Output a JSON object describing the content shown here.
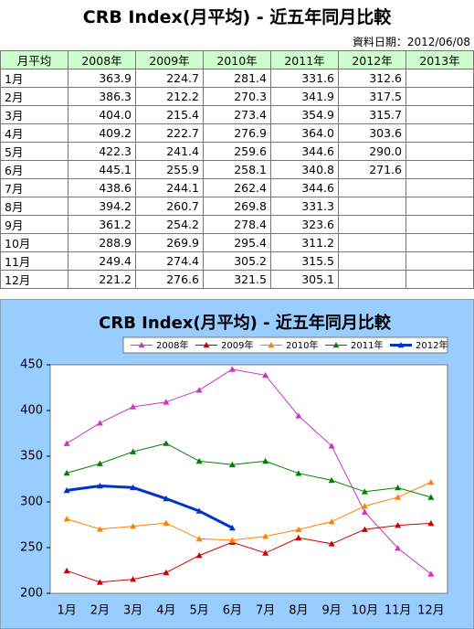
{
  "title": "CRB Index(月平均) - 近五年同月比較",
  "date_note": "資料日期：2012/06/08",
  "table": {
    "header": [
      "月平均",
      "2008年",
      "2009年",
      "2010年",
      "2011年",
      "2012年",
      "2013年"
    ],
    "rows": [
      [
        "1月",
        "363.9",
        "224.7",
        "281.4",
        "331.6",
        "312.6"
      ],
      [
        "2月",
        "386.3",
        "212.2",
        "270.3",
        "341.9",
        "317.5"
      ],
      [
        "3月",
        "404.0",
        "215.4",
        "273.4",
        "354.9",
        "315.7"
      ],
      [
        "4月",
        "409.2",
        "222.7",
        "276.9",
        "364.0",
        "303.6"
      ],
      [
        "5月",
        "422.3",
        "241.4",
        "259.6",
        "344.6",
        "290.0"
      ],
      [
        "6月",
        "445.1",
        "255.9",
        "258.1",
        "340.8",
        "271.6"
      ],
      [
        "7月",
        "438.6",
        "244.1",
        "262.4",
        "344.6"
      ],
      [
        "8月",
        "394.2",
        "260.7",
        "269.8",
        "331.3"
      ],
      [
        "9月",
        "361.2",
        "254.2",
        "278.4",
        "323.6"
      ],
      [
        "10月",
        "288.9",
        "269.9",
        "295.4",
        "311.2"
      ],
      [
        "11月",
        "249.4",
        "274.4",
        "305.2",
        "315.5"
      ],
      [
        "12月",
        "221.2",
        "276.6",
        "321.5",
        "305.1"
      ]
    ]
  },
  "chart_data": {
    "type": "line",
    "title": "CRB Index(月平均) - 近五年同月比較",
    "categories": [
      "1月",
      "2月",
      "3月",
      "4月",
      "5月",
      "6月",
      "7月",
      "8月",
      "9月",
      "10月",
      "11月",
      "12月"
    ],
    "series": [
      {
        "name": "2008年",
        "color": "#cc33cc",
        "values": [
          363.9,
          386.3,
          404.0,
          409.2,
          422.3,
          445.1,
          438.6,
          394.2,
          361.2,
          288.9,
          249.4,
          221.2
        ]
      },
      {
        "name": "2009年",
        "color": "#cc0000",
        "values": [
          224.7,
          212.2,
          215.4,
          222.7,
          241.4,
          255.9,
          244.1,
          260.7,
          254.2,
          269.9,
          274.4,
          276.6
        ]
      },
      {
        "name": "2010年",
        "color": "#ff8000",
        "values": [
          281.4,
          270.3,
          273.4,
          276.9,
          259.6,
          258.1,
          262.4,
          269.8,
          278.4,
          295.4,
          305.2,
          321.5
        ]
      },
      {
        "name": "2011年",
        "color": "#008000",
        "values": [
          331.6,
          341.9,
          354.9,
          364.0,
          344.6,
          340.8,
          344.6,
          331.3,
          323.6,
          311.2,
          315.5,
          305.1
        ]
      },
      {
        "name": "2012年",
        "color": "#0033cc",
        "values": [
          312.6,
          317.5,
          315.7,
          303.6,
          290.0,
          271.6,
          null,
          null,
          null,
          null,
          null,
          null
        ]
      }
    ],
    "ylim": [
      200,
      450
    ],
    "yticks": [
      200,
      250,
      300,
      350,
      400,
      450
    ],
    "legend": "top"
  }
}
